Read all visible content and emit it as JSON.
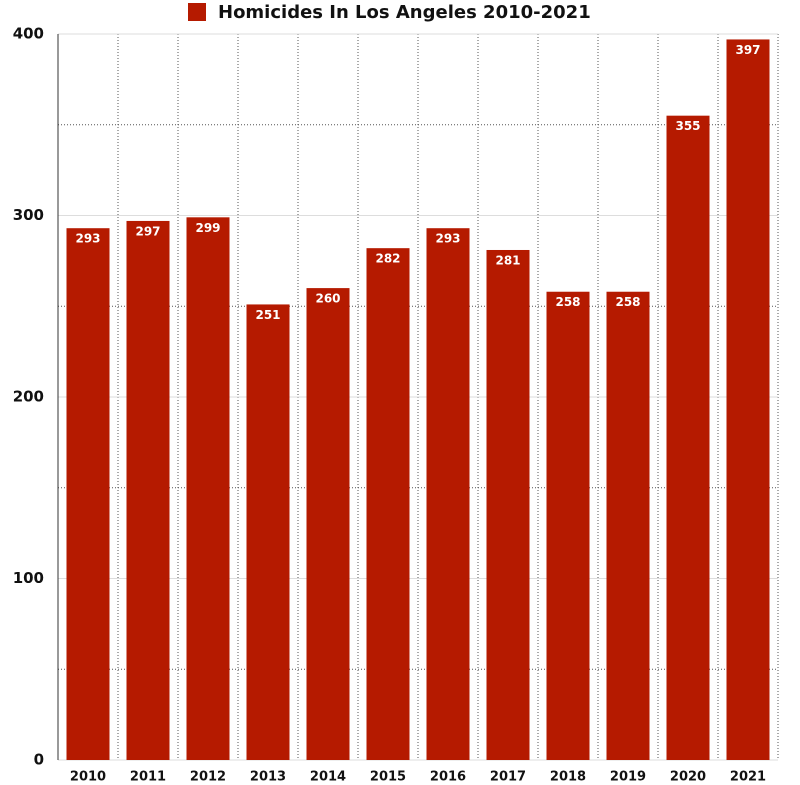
{
  "chart_data": {
    "type": "bar",
    "categories": [
      "2010",
      "2011",
      "2012",
      "2013",
      "2014",
      "2015",
      "2016",
      "2017",
      "2018",
      "2019",
      "2020",
      "2021"
    ],
    "series": [
      {
        "name": "Homicides In Los Angeles 2010-2021",
        "color": "#b51a00",
        "values": [
          293,
          297,
          299,
          251,
          260,
          282,
          293,
          281,
          258,
          258,
          355,
          397
        ]
      }
    ],
    "ylim": [
      0,
      400
    ],
    "yticks": [
      0,
      100,
      200,
      300,
      400
    ],
    "minor_yticks": [
      50,
      150,
      250,
      350
    ],
    "grid": true,
    "legend": "top"
  }
}
